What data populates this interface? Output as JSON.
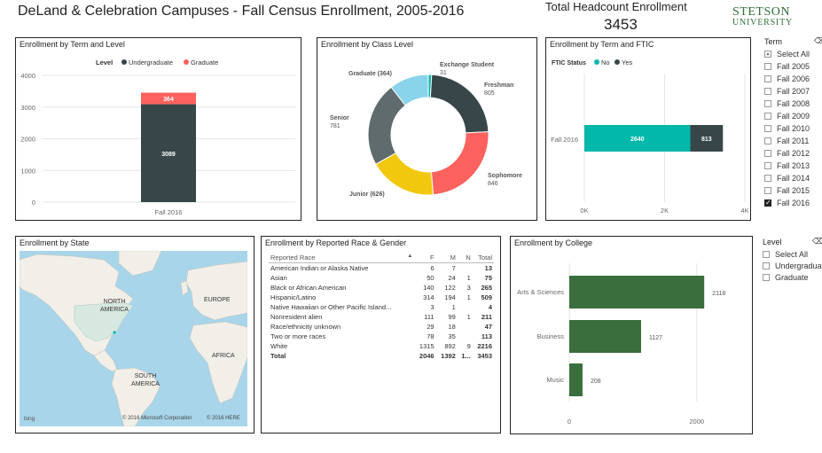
{
  "header": {
    "title": "DeLand & Celebration Campuses - Fall Census Enrollment, 2005-2016",
    "kpi_label": "Total Headcount Enrollment",
    "kpi_value": "3453",
    "logo_top": "STETSON",
    "logo_bottom": "UNIVERSITY"
  },
  "colors": {
    "dark": "#374649",
    "red": "#fd625e",
    "teal": "#01b8aa",
    "gray": "#5f6b6d",
    "yellow": "#f2c80f",
    "lightblue": "#8ad4eb",
    "green": "#3a6e3c"
  },
  "panels": {
    "term_level": "Enrollment by Term and Level",
    "class_level": "Enrollment by Class Level",
    "term_ftic": "Enrollment by Term and FTIC",
    "state": "Enrollment by State",
    "race_gender": "Enrollment by Reported Race & Gender",
    "college": "Enrollment by College"
  },
  "chart_data": [
    {
      "type": "bar",
      "name": "term_level",
      "legend_title": "Level",
      "categories": [
        "Fall 2016"
      ],
      "series": [
        {
          "name": "Undergraduate",
          "values": [
            3089
          ]
        },
        {
          "name": "Graduate",
          "values": [
            364
          ]
        }
      ],
      "yticks": [
        "0",
        "1000",
        "2000",
        "3000",
        "4000"
      ],
      "ylim": [
        0,
        4000
      ],
      "legend": "top-center",
      "stacked": true
    },
    {
      "type": "pie",
      "name": "class_level",
      "donut": true,
      "slices": [
        {
          "name": "Exchange Student",
          "value": 31,
          "label": "Exchange Student",
          "label2": "31"
        },
        {
          "name": "Freshman",
          "value": 805,
          "label": "Freshman",
          "label2": "805"
        },
        {
          "name": "Sophomore",
          "value": 846,
          "label": "Sophomore",
          "label2": "846"
        },
        {
          "name": "Junior",
          "value": 626,
          "label": "Junior (626)",
          "label2": ""
        },
        {
          "name": "Senior",
          "value": 781,
          "label": "Senior",
          "label2": "781"
        },
        {
          "name": "Graduate",
          "value": 364,
          "label": "Graduate (364)",
          "label2": ""
        }
      ]
    },
    {
      "type": "bar",
      "name": "term_ftic",
      "orientation": "horizontal",
      "legend_title": "FTIC Status",
      "categories": [
        "Fall 2016"
      ],
      "series": [
        {
          "name": "No",
          "values": [
            2640
          ]
        },
        {
          "name": "Yes",
          "values": [
            813
          ]
        }
      ],
      "xticks": [
        "0K",
        "2K",
        "4K"
      ],
      "xlim": [
        0,
        4000
      ],
      "legend": "top-left",
      "stacked": true
    },
    {
      "type": "bar",
      "name": "college",
      "orientation": "horizontal",
      "categories": [
        "Arts & Sciences",
        "Business",
        "Music"
      ],
      "values": [
        2118,
        1127,
        208
      ],
      "xticks": [
        "0",
        "2000"
      ],
      "xlim": [
        0,
        2700
      ]
    }
  ],
  "race_table": {
    "headers": [
      "Reported Race",
      "F",
      "M",
      "N",
      "Total"
    ],
    "rows": [
      [
        "American Indian or Alaska Native",
        "6",
        "7",
        "",
        "13"
      ],
      [
        "Asian",
        "50",
        "24",
        "1",
        "75"
      ],
      [
        "Black or African American",
        "140",
        "122",
        "3",
        "265"
      ],
      [
        "Hispanic/Latino",
        "314",
        "194",
        "1",
        "509"
      ],
      [
        "Native Hawaiian or Other Pacific Island...",
        "3",
        "1",
        "",
        "4"
      ],
      [
        "Nonresident alien",
        "111",
        "99",
        "1",
        "211"
      ],
      [
        "Race/ethnicity unknown",
        "29",
        "18",
        "",
        "47"
      ],
      [
        "Two or more races",
        "78",
        "35",
        "",
        "113"
      ],
      [
        "White",
        "1315",
        "892",
        "9",
        "2216"
      ]
    ],
    "total": [
      "Total",
      "2046",
      "1392",
      "1...",
      "3453"
    ]
  },
  "map": {
    "labels": [
      "NORTH AMERICA",
      "EUROPE",
      "AFRICA",
      "SOUTH AMERICA"
    ],
    "copyright1": "© 2016 Microsoft Corporation",
    "copyright2": "© 2016 HERE",
    "bing": "bing"
  },
  "slicers": {
    "term": {
      "title": "Term",
      "items": [
        {
          "label": "Select All",
          "state": "partial"
        },
        {
          "label": "Fall 2005",
          "state": "off"
        },
        {
          "label": "Fall 2006",
          "state": "off"
        },
        {
          "label": "Fall 2007",
          "state": "off"
        },
        {
          "label": "Fall 2008",
          "state": "off"
        },
        {
          "label": "Fall 2009",
          "state": "off"
        },
        {
          "label": "Fall 2010",
          "state": "off"
        },
        {
          "label": "Fall 2011",
          "state": "off"
        },
        {
          "label": "Fall 2012",
          "state": "off"
        },
        {
          "label": "Fall 2013",
          "state": "off"
        },
        {
          "label": "Fall 2014",
          "state": "off"
        },
        {
          "label": "Fall 2015",
          "state": "off"
        },
        {
          "label": "Fall 2016",
          "state": "on"
        }
      ]
    },
    "level": {
      "title": "Level",
      "items": [
        {
          "label": "Select All",
          "state": "off"
        },
        {
          "label": "Undergraduate",
          "state": "off"
        },
        {
          "label": "Graduate",
          "state": "off"
        }
      ]
    }
  }
}
